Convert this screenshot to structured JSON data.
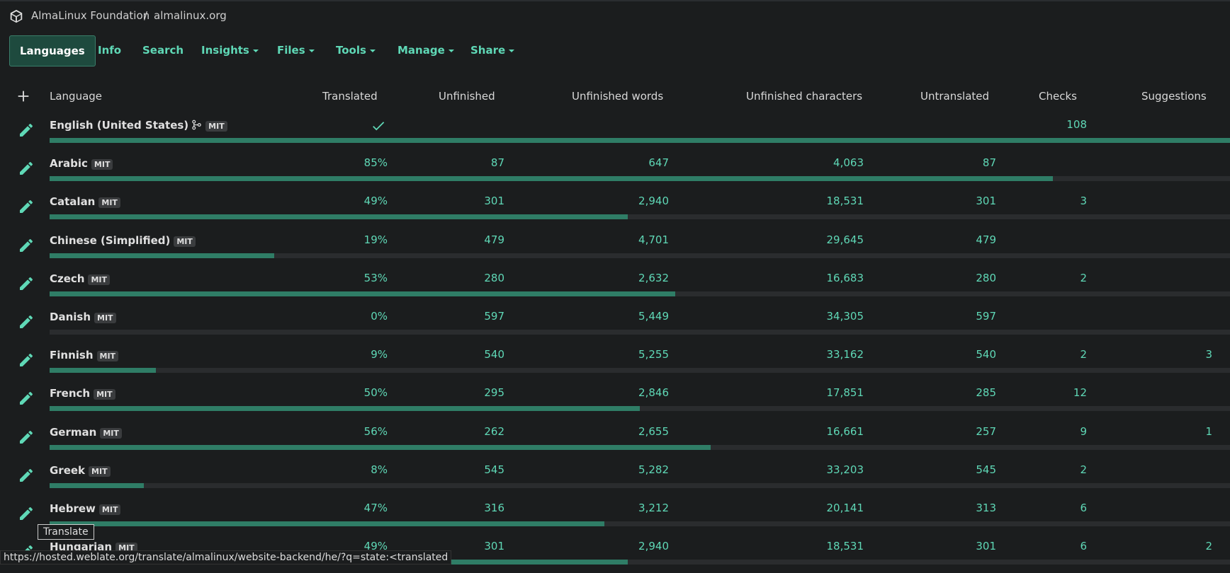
{
  "header": {
    "project": "AlmaLinux Foundation",
    "component": "almalinux.org"
  },
  "tabs": [
    {
      "label": "Languages",
      "dropdown": false,
      "active": true
    },
    {
      "label": "Info",
      "dropdown": false
    },
    {
      "label": "Search",
      "dropdown": false
    },
    {
      "label": "Insights",
      "dropdown": true
    },
    {
      "label": "Files",
      "dropdown": true
    },
    {
      "label": "Tools",
      "dropdown": true
    },
    {
      "label": "Manage",
      "dropdown": true
    },
    {
      "label": "Share",
      "dropdown": true
    }
  ],
  "table": {
    "columns": [
      "Language",
      "Translated",
      "Unfinished",
      "Unfinished words",
      "Unfinished characters",
      "Untranslated",
      "Checks",
      "Suggestions"
    ],
    "rows": [
      {
        "language": "English (United States)",
        "source": true,
        "license": "MIT",
        "translated": {
          "value": 100
        },
        "unfinished": null,
        "unfinished_words": null,
        "unfinished_characters": null,
        "untranslated": null,
        "checks": "108",
        "suggestions": null
      },
      {
        "language": "Arabic",
        "license": "MIT",
        "translated": {
          "value": 85,
          "label": "85%"
        },
        "unfinished": "87",
        "unfinished_words": "647",
        "unfinished_characters": "4,063",
        "untranslated": "87",
        "checks": null,
        "suggestions": null
      },
      {
        "language": "Catalan",
        "license": "MIT",
        "translated": {
          "value": 49,
          "label": "49%"
        },
        "unfinished": "301",
        "unfinished_words": "2,940",
        "unfinished_characters": "18,531",
        "untranslated": "301",
        "checks": "3",
        "suggestions": null
      },
      {
        "language": "Chinese (Simplified)",
        "license": "MIT",
        "translated": {
          "value": 19,
          "label": "19%"
        },
        "unfinished": "479",
        "unfinished_words": "4,701",
        "unfinished_characters": "29,645",
        "untranslated": "479",
        "checks": null,
        "suggestions": null
      },
      {
        "language": "Czech",
        "license": "MIT",
        "translated": {
          "value": 53,
          "label": "53%"
        },
        "unfinished": "280",
        "unfinished_words": "2,632",
        "unfinished_characters": "16,683",
        "untranslated": "280",
        "checks": "2",
        "suggestions": null
      },
      {
        "language": "Danish",
        "license": "MIT",
        "translated": {
          "value": 0,
          "label": "0%"
        },
        "unfinished": "597",
        "unfinished_words": "5,449",
        "unfinished_characters": "34,305",
        "untranslated": "597",
        "checks": null,
        "suggestions": null
      },
      {
        "language": "Finnish",
        "license": "MIT",
        "translated": {
          "value": 9,
          "label": "9%"
        },
        "unfinished": "540",
        "unfinished_words": "5,255",
        "unfinished_characters": "33,162",
        "untranslated": "540",
        "checks": "2",
        "suggestions": "3"
      },
      {
        "language": "French",
        "license": "MIT",
        "translated": {
          "value": 50,
          "label": "50%"
        },
        "unfinished": "295",
        "unfinished_words": "2,846",
        "unfinished_characters": "17,851",
        "untranslated": "285",
        "checks": "12",
        "suggestions": null
      },
      {
        "language": "German",
        "license": "MIT",
        "translated": {
          "value": 56,
          "label": "56%"
        },
        "unfinished": "262",
        "unfinished_words": "2,655",
        "unfinished_characters": "16,661",
        "untranslated": "257",
        "checks": "9",
        "suggestions": "1"
      },
      {
        "language": "Greek",
        "license": "MIT",
        "translated": {
          "value": 8,
          "label": "8%"
        },
        "unfinished": "545",
        "unfinished_words": "5,282",
        "unfinished_characters": "33,203",
        "untranslated": "545",
        "checks": "2",
        "suggestions": null
      },
      {
        "language": "Hebrew",
        "license": "MIT",
        "translated": {
          "value": 47,
          "label": "47%"
        },
        "unfinished": "316",
        "unfinished_words": "3,212",
        "unfinished_characters": "20,141",
        "untranslated": "313",
        "checks": "6",
        "suggestions": null
      },
      {
        "language": "Hungarian",
        "license": "MIT",
        "translated": {
          "value": 49,
          "label": "49%"
        },
        "unfinished": "301",
        "unfinished_words": "2,940",
        "unfinished_characters": "18,531",
        "untranslated": "301",
        "checks": "6",
        "suggestions": "2"
      }
    ]
  },
  "tooltip": "Translate",
  "status_url": "https://hosted.weblate.org/translate/almalinux/website-backend/he/?q=state:<translated"
}
